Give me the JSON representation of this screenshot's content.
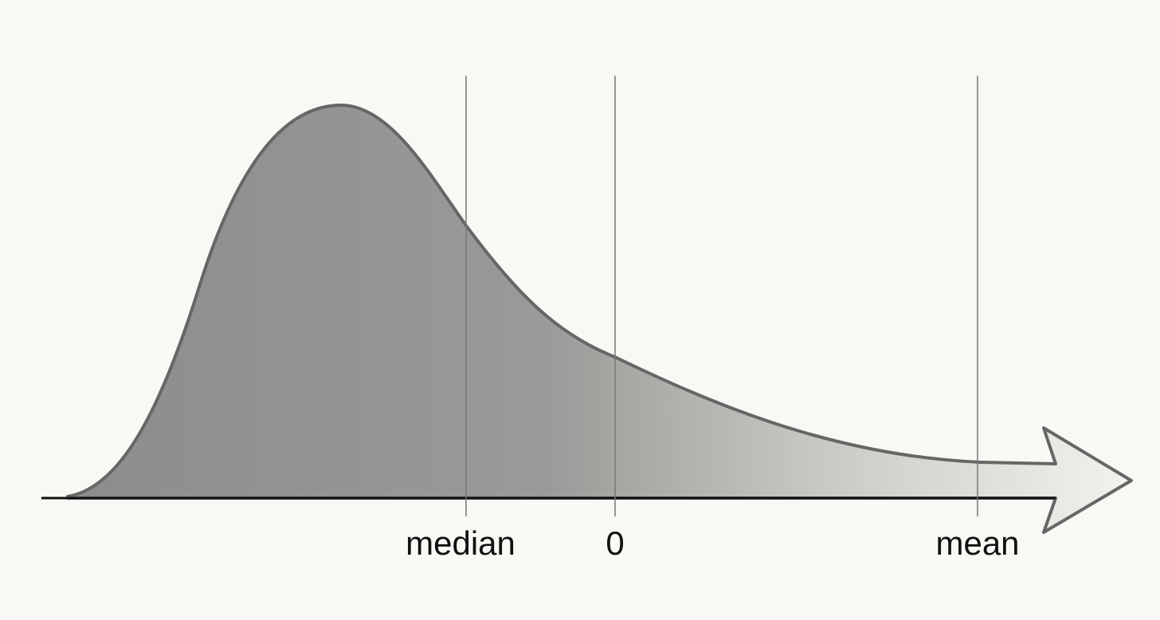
{
  "markers": [
    {
      "label": "median"
    },
    {
      "label": "0"
    },
    {
      "label": "mean"
    }
  ]
}
